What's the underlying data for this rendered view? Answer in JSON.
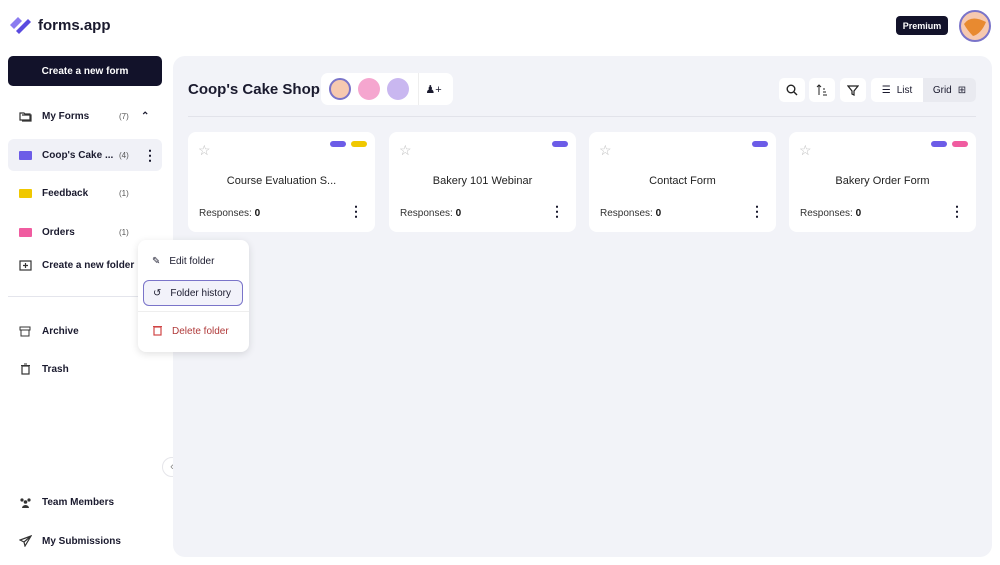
{
  "app": {
    "name": "forms.app",
    "brand_color": "#6c5ce7"
  },
  "header": {
    "premium_label": "Premium",
    "user_avatar": "croissant-avatar"
  },
  "sidebar": {
    "create_form_label": "Create a new form",
    "my_forms": {
      "label": "My Forms",
      "count": "(7)"
    },
    "folders": [
      {
        "label": "Coop's Cake ...",
        "count": "(4)",
        "color": "#6c5ce7"
      },
      {
        "label": "Feedback",
        "count": "(1)",
        "color": "#f0c800"
      },
      {
        "label": "Orders",
        "count": "(1)",
        "color": "#f05ca0"
      }
    ],
    "create_folder_label": "Create a new folder",
    "archive_label": "Archive",
    "trash_label": "Trash",
    "team_members_label": "Team Members",
    "my_submissions_label": "My Submissions"
  },
  "context_menu": {
    "items": [
      {
        "label": "Edit folder"
      },
      {
        "label": "Folder history"
      },
      {
        "label": "Delete folder",
        "color": "#b03a3a"
      }
    ]
  },
  "main": {
    "title": "Coop's Cake Shop",
    "view": {
      "list_label": "List",
      "grid_label": "Grid",
      "selected": "Grid"
    },
    "cards": [
      {
        "name": "Course Evaluation S...",
        "responses_label": "Responses:",
        "responses": "0",
        "tags": [
          "#6c5ce7",
          "#f0c800"
        ]
      },
      {
        "name": "Bakery 101 Webinar",
        "responses_label": "Responses:",
        "responses": "0",
        "tags": [
          "#6c5ce7"
        ]
      },
      {
        "name": "Contact Form",
        "responses_label": "Responses:",
        "responses": "0",
        "tags": [
          "#6c5ce7"
        ]
      },
      {
        "name": "Bakery Order Form",
        "responses_label": "Responses:",
        "responses": "0",
        "tags": [
          "#6c5ce7",
          "#f05ca0"
        ]
      }
    ]
  }
}
